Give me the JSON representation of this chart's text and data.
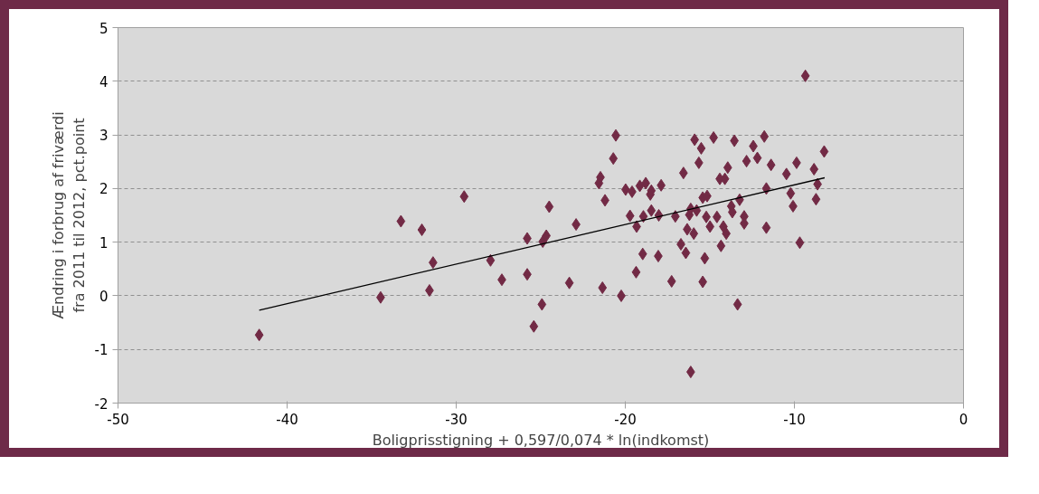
{
  "chart_data": {
    "type": "scatter",
    "xlabel": "Boligprisstigning + 0,597/0,074 * ln(indkomst)",
    "ylabel": "Ændring i forbrug af friværdi fra 2011 til 2012, pct.point",
    "xlim": [
      -50,
      0
    ],
    "xticks": [
      -50,
      -40,
      -30,
      -20,
      -10,
      0
    ],
    "ylim": [
      -2,
      5
    ],
    "yticks": [
      -2,
      -1,
      0,
      1,
      2,
      3,
      4,
      5
    ],
    "grid": "y",
    "series": [
      {
        "marker": "diamond",
        "color": "#722a45",
        "x": [
          -41.65,
          -34.47,
          -33.27,
          -32.03,
          -31.58,
          -31.37,
          -29.53,
          -27.97,
          -27.3,
          -25.8,
          -25.8,
          -25.41,
          -24.93,
          -24.88,
          -24.67,
          -24.5,
          -23.31,
          -22.91,
          -21.56,
          -21.47,
          -21.35,
          -21.2,
          -20.71,
          -20.56,
          -20.24,
          -19.98,
          -19.72,
          -19.6,
          -19.36,
          -19.33,
          -19.14,
          -18.93,
          -18.97,
          -18.79,
          -18.46,
          -18.52,
          -18.46,
          -18.05,
          -17.88,
          -18.02,
          -17.26,
          -17.04,
          -16.71,
          -16.56,
          -16.42,
          -16.34,
          -16.21,
          -16.13,
          -16.13,
          -15.95,
          -15.9,
          -15.78,
          -15.65,
          -15.51,
          -15.42,
          -15.42,
          -15.3,
          -15.21,
          -15.16,
          -14.99,
          -14.78,
          -14.58,
          -14.41,
          -14.34,
          -14.2,
          -14.11,
          -14.03,
          -13.94,
          -13.73,
          -13.67,
          -13.55,
          -13.36,
          -13.24,
          -12.97,
          -12.97,
          -12.83,
          -12.43,
          -12.19,
          -11.78,
          -11.66,
          -11.66,
          -11.38,
          -10.47,
          -10.22,
          -10.08,
          -9.87,
          -9.68,
          -9.35,
          -8.84,
          -8.72,
          -8.63,
          -8.24
        ],
        "values": [
          -0.73,
          -0.03,
          1.39,
          1.23,
          0.1,
          0.62,
          1.85,
          0.66,
          0.3,
          1.07,
          0.4,
          -0.57,
          -0.16,
          1.01,
          1.12,
          1.66,
          0.24,
          1.33,
          2.1,
          2.21,
          0.15,
          1.78,
          2.56,
          2.99,
          0.0,
          1.98,
          1.49,
          1.94,
          0.44,
          1.29,
          2.05,
          1.48,
          0.78,
          2.1,
          1.59,
          1.89,
          1.96,
          0.74,
          2.06,
          1.5,
          0.27,
          1.48,
          0.96,
          2.29,
          0.8,
          1.24,
          1.51,
          1.62,
          -1.42,
          1.16,
          2.91,
          1.59,
          2.48,
          2.75,
          1.83,
          0.26,
          0.7,
          1.47,
          1.86,
          1.29,
          2.95,
          1.47,
          2.18,
          0.93,
          1.29,
          2.18,
          1.16,
          2.39,
          1.67,
          1.56,
          2.89,
          -0.16,
          1.79,
          1.48,
          1.35,
          2.51,
          2.79,
          2.57,
          2.97,
          2.0,
          1.27,
          2.44,
          2.27,
          1.91,
          1.67,
          2.48,
          0.99,
          4.1,
          2.36,
          1.8,
          2.08,
          2.69
        ]
      },
      {
        "type": "line",
        "marker": "none",
        "line_style": "solid",
        "color": "#000000",
        "x": [
          -41.65,
          -8.21
        ],
        "values": [
          -0.27,
          2.2
        ]
      }
    ]
  }
}
